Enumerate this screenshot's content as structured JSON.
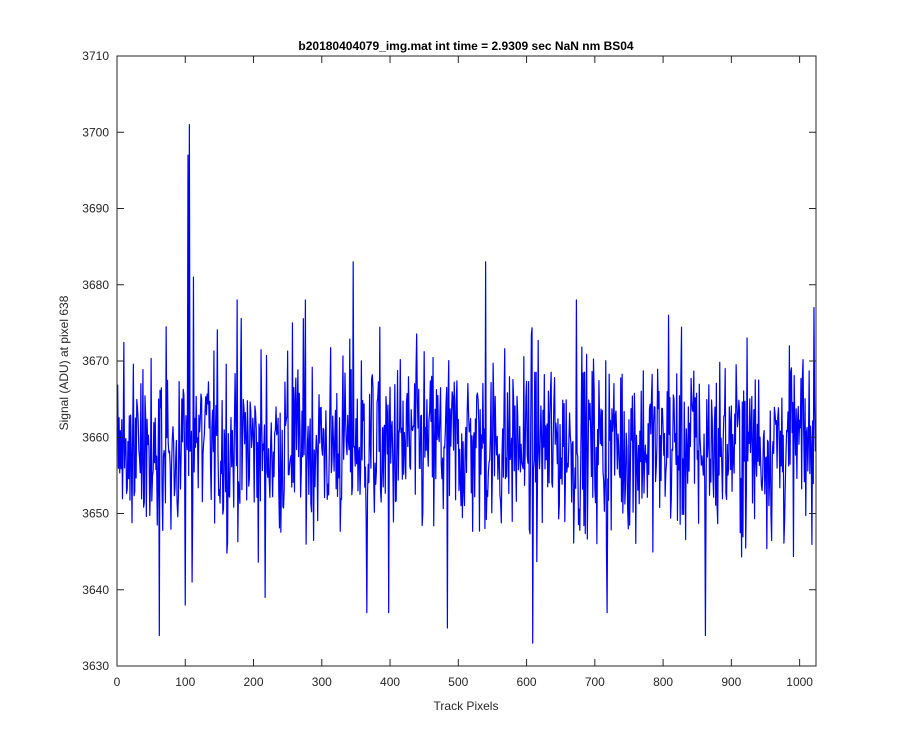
{
  "chart_data": {
    "type": "line",
    "title": "b20180404079_img.mat int time = 2.9309 sec  NaN nm BS04",
    "xlabel": "Track Pixels",
    "ylabel": "Signal (ADU) at pixel 638",
    "xlim": [
      0,
      1024
    ],
    "ylim": [
      3630,
      3710
    ],
    "xticks": [
      0,
      100,
      200,
      300,
      400,
      500,
      600,
      700,
      800,
      900,
      1000
    ],
    "yticks": [
      3630,
      3640,
      3650,
      3660,
      3670,
      3680,
      3690,
      3700,
      3710
    ],
    "grid": false,
    "legend": "none",
    "series_color": "#0000ff",
    "series": [
      {
        "x_start": 1,
        "x_step": 1,
        "mean": 3659,
        "noise_sd": 6,
        "noise_seed": 638,
        "anchors": [
          [
            62,
            3634
          ],
          [
            100,
            3638
          ],
          [
            104,
            3697
          ],
          [
            106,
            3701
          ],
          [
            110,
            3641
          ],
          [
            112,
            3681
          ],
          [
            176,
            3678
          ],
          [
            217,
            3639
          ],
          [
            257,
            3675
          ],
          [
            276,
            3678
          ],
          [
            346,
            3683
          ],
          [
            366,
            3637
          ],
          [
            398,
            3637
          ],
          [
            484,
            3635
          ],
          [
            540,
            3683
          ],
          [
            609,
            3633
          ],
          [
            673,
            3678
          ],
          [
            718,
            3637
          ],
          [
            808,
            3676
          ],
          [
            862,
            3634
          ],
          [
            1021,
            3677
          ]
        ]
      }
    ]
  }
}
